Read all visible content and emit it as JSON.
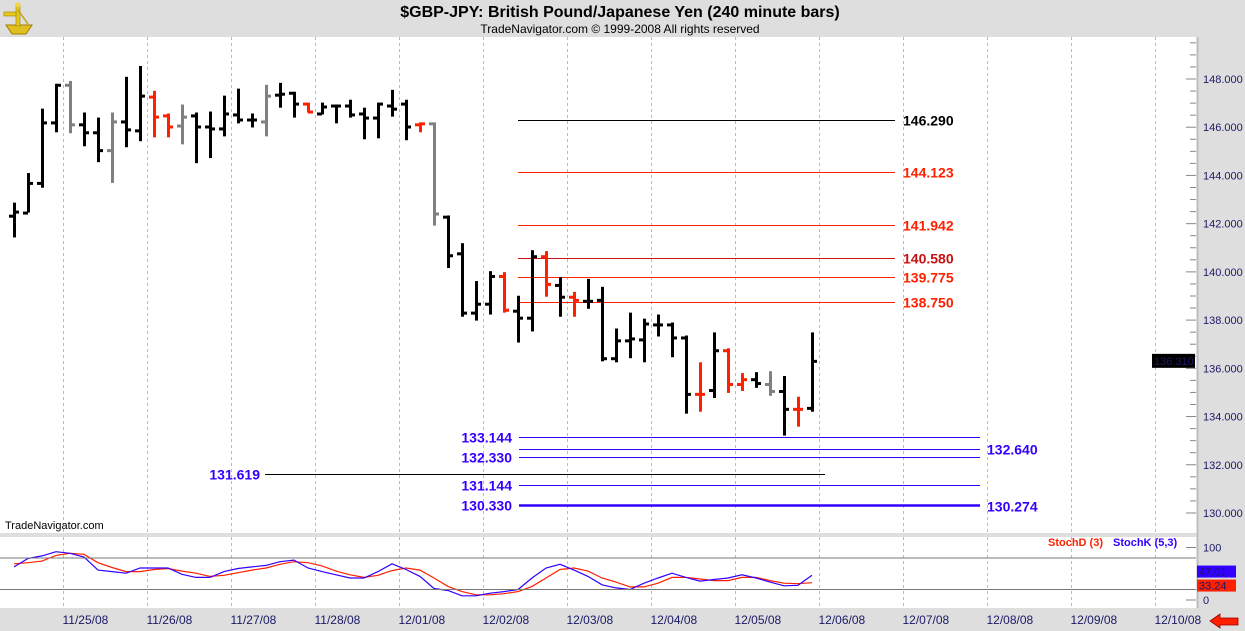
{
  "header": {
    "title": "$GBP-JPY:  British Pound/Japanese Yen  (240 minute bars)",
    "subtitle": "TradeNavigator.com © 1999-2008 All rights reserved",
    "logo_icon": "sextant-icon"
  },
  "watermark": "TradeNavigator.com",
  "colors": {
    "up": "#000000",
    "down": "#ff2000",
    "neutral": "#808080",
    "blue": "#3300ff",
    "red": "#ff2000",
    "darkred": "#c81010",
    "stochK": "#3300ff",
    "stochD": "#ff2000"
  },
  "chart_data": [
    {
      "type": "ohlc",
      "title": "$GBP-JPY:  British Pound/Japanese Yen  (240 minute bars)",
      "ylim": [
        129.5,
        149.7
      ],
      "y_ticks": [
        "148.000",
        "146.000",
        "144.000",
        "142.000",
        "140.000",
        "138.000",
        "136.000",
        "134.000",
        "132.000",
        "130.000"
      ],
      "y_tick_values": [
        148,
        146,
        144,
        142,
        140,
        138,
        136,
        134,
        132,
        130
      ],
      "x_tick_labels": [
        "11/25/08",
        "11/26/08",
        "11/27/08",
        "11/28/08",
        "12/01/08",
        "12/02/08",
        "12/03/08",
        "12/04/08",
        "12/05/08",
        "12/06/08",
        "12/07/08",
        "12/08/08",
        "12/09/08",
        "12/10/08"
      ],
      "last_price": "136.310",
      "bars_fields": [
        "open",
        "high",
        "low",
        "close",
        "color"
      ],
      "bars": [
        [
          142.33,
          142.87,
          141.43,
          142.5,
          "up"
        ],
        [
          142.46,
          144.1,
          142.46,
          143.69,
          "up"
        ],
        [
          143.69,
          146.77,
          143.49,
          146.2,
          "up"
        ],
        [
          146.2,
          147.8,
          145.79,
          147.76,
          "up"
        ],
        [
          147.76,
          147.92,
          145.75,
          146.12,
          "neutral"
        ],
        [
          146.12,
          146.61,
          145.21,
          145.79,
          "up"
        ],
        [
          145.79,
          146.4,
          144.55,
          145.05,
          "up"
        ],
        [
          145.05,
          146.61,
          143.69,
          146.24,
          "neutral"
        ],
        [
          146.24,
          148.09,
          145.17,
          145.91,
          "up"
        ],
        [
          145.87,
          148.54,
          145.42,
          147.31,
          "up"
        ],
        [
          147.27,
          147.51,
          145.58,
          146.44,
          "down"
        ],
        [
          146.49,
          146.57,
          145.58,
          146.03,
          "down"
        ],
        [
          146.07,
          146.94,
          145.29,
          146.44,
          "neutral"
        ],
        [
          146.49,
          146.61,
          144.51,
          146.03,
          "up"
        ],
        [
          146.03,
          146.65,
          144.72,
          145.95,
          "up"
        ],
        [
          145.95,
          147.31,
          145.62,
          146.57,
          "up"
        ],
        [
          146.53,
          147.6,
          146.16,
          146.32,
          "up"
        ],
        [
          146.32,
          146.57,
          145.99,
          146.32,
          "up"
        ],
        [
          146.24,
          147.76,
          145.62,
          147.31,
          "neutral"
        ],
        [
          147.35,
          147.84,
          146.81,
          147.39,
          "up"
        ],
        [
          147.43,
          147.47,
          146.4,
          146.98,
          "up"
        ],
        [
          146.98,
          147.02,
          146.61,
          146.65,
          "down"
        ],
        [
          146.57,
          147.02,
          146.53,
          146.86,
          "up"
        ],
        [
          146.9,
          146.94,
          146.16,
          146.9,
          "up"
        ],
        [
          146.9,
          147.14,
          146.4,
          146.53,
          "up"
        ],
        [
          146.57,
          146.81,
          145.5,
          146.4,
          "up"
        ],
        [
          146.4,
          147.02,
          145.54,
          146.98,
          "up"
        ],
        [
          146.9,
          147.55,
          146.44,
          146.77,
          "up"
        ],
        [
          146.98,
          147.14,
          145.46,
          146.03,
          "up"
        ],
        [
          146.12,
          146.2,
          145.79,
          146.16,
          "down"
        ],
        [
          146.16,
          146.2,
          141.92,
          142.42,
          "neutral"
        ],
        [
          142.29,
          142.34,
          140.16,
          140.69,
          "up"
        ],
        [
          140.77,
          141.19,
          138.14,
          138.31,
          "up"
        ],
        [
          138.31,
          139.62,
          137.98,
          138.68,
          "up"
        ],
        [
          138.68,
          140.03,
          138.23,
          139.83,
          "up"
        ],
        [
          139.83,
          139.99,
          138.31,
          138.43,
          "down"
        ],
        [
          138.39,
          139.01,
          137.07,
          138.1,
          "up"
        ],
        [
          138.1,
          140.9,
          137.53,
          140.65,
          "up"
        ],
        [
          140.65,
          140.86,
          138.97,
          139.5,
          "down"
        ],
        [
          139.46,
          139.79,
          138.14,
          138.97,
          "up"
        ],
        [
          138.97,
          139.17,
          138.14,
          138.84,
          "down"
        ],
        [
          138.8,
          139.71,
          138.47,
          138.8,
          "up"
        ],
        [
          138.84,
          139.38,
          136.29,
          136.42,
          "up"
        ],
        [
          136.42,
          137.65,
          136.25,
          137.16,
          "up"
        ],
        [
          137.16,
          138.31,
          136.42,
          137.24,
          "up"
        ],
        [
          137.2,
          138.06,
          136.25,
          137.86,
          "up"
        ],
        [
          137.82,
          138.23,
          137.32,
          137.82,
          "up"
        ],
        [
          137.82,
          137.9,
          136.46,
          137.28,
          "up"
        ],
        [
          137.28,
          137.36,
          134.12,
          134.94,
          "up"
        ],
        [
          134.94,
          136.25,
          134.2,
          134.94,
          "down"
        ],
        [
          135.1,
          137.49,
          134.77,
          136.75,
          "up"
        ],
        [
          136.75,
          136.83,
          134.98,
          135.35,
          "down"
        ],
        [
          135.35,
          135.8,
          135.06,
          135.55,
          "down"
        ],
        [
          135.55,
          135.84,
          135.19,
          135.39,
          "up"
        ],
        [
          135.35,
          135.88,
          134.86,
          135.06,
          "neutral"
        ],
        [
          135.06,
          135.68,
          133.21,
          134.32,
          "up"
        ],
        [
          134.32,
          134.82,
          133.58,
          134.32,
          "down"
        ],
        [
          134.36,
          137.49,
          134.2,
          136.31,
          "up"
        ]
      ],
      "levels": [
        {
          "label": "146.290",
          "value": 146.29,
          "color": "#000000",
          "span": "right",
          "side": "right"
        },
        {
          "label": "144.123",
          "value": 144.123,
          "color": "#ff2000",
          "span": "right",
          "side": "right"
        },
        {
          "label": "141.942",
          "value": 141.942,
          "color": "#ff2000",
          "span": "right",
          "side": "right"
        },
        {
          "label": "140.580",
          "value": 140.58,
          "color": "#c81010",
          "span": "right",
          "side": "right"
        },
        {
          "label": "139.775",
          "value": 139.775,
          "color": "#ff2000",
          "span": "right",
          "side": "right"
        },
        {
          "label": "138.750",
          "value": 138.75,
          "color": "#ff2000",
          "span": "right",
          "side": "right"
        },
        {
          "label": "133.144",
          "value": 133.144,
          "color": "#3300ff",
          "span": "long",
          "side": "left"
        },
        {
          "label": "132.640",
          "value": 132.64,
          "color": "#3300ff",
          "span": "long",
          "side": "right-far"
        },
        {
          "label": "132.330",
          "value": 132.33,
          "color": "#3300ff",
          "span": "long",
          "side": "left"
        },
        {
          "label": "131.619",
          "value": 131.619,
          "color": "#000000",
          "span": "wide",
          "side": "left-far",
          "label_color": "#3300ff"
        },
        {
          "label": "131.144",
          "value": 131.144,
          "color": "#3300ff",
          "span": "long",
          "side": "left"
        },
        {
          "label": "130.330",
          "value": 130.33,
          "color": "#3300ff",
          "span": "long",
          "side": "left",
          "thick": true
        },
        {
          "label": "130.274",
          "value": 130.274,
          "color": "#3300ff",
          "span": "none",
          "side": "right-far"
        }
      ]
    },
    {
      "type": "line",
      "title": "Stochastic",
      "ylim": [
        0,
        100
      ],
      "y_ticks": [
        "100",
        "0"
      ],
      "reference_lines": [
        80,
        20
      ],
      "legend": [
        "StochD (3)",
        "StochK (5,3)"
      ],
      "legend_placement": "top-right",
      "series": [
        {
          "name": "StochK (5,3)",
          "last": "47.01",
          "values": [
            63,
            79,
            84,
            92,
            89,
            82,
            57,
            54,
            51,
            61,
            61,
            61,
            49,
            43,
            43,
            54,
            60,
            63,
            66,
            73,
            76,
            61,
            54,
            48,
            42,
            42,
            54,
            69,
            58,
            45,
            22,
            18,
            8,
            8,
            13,
            16,
            20,
            42,
            61,
            68,
            57,
            45,
            29,
            23,
            20,
            32,
            42,
            51,
            43,
            36,
            39,
            42,
            48,
            42,
            34,
            27,
            28,
            47
          ]
        },
        {
          "name": "StochD (3)",
          "last": "33.24",
          "values": [
            69,
            71,
            74,
            85,
            89,
            87,
            71,
            62,
            54,
            54,
            58,
            60,
            55,
            51,
            45,
            47,
            52,
            57,
            61,
            68,
            73,
            71,
            65,
            55,
            48,
            43,
            47,
            56,
            61,
            57,
            42,
            26,
            16,
            10,
            10,
            12,
            16,
            26,
            42,
            58,
            61,
            55,
            42,
            34,
            25,
            25,
            32,
            43,
            43,
            40,
            37,
            37,
            43,
            43,
            37,
            32,
            31,
            33
          ]
        }
      ]
    }
  ]
}
